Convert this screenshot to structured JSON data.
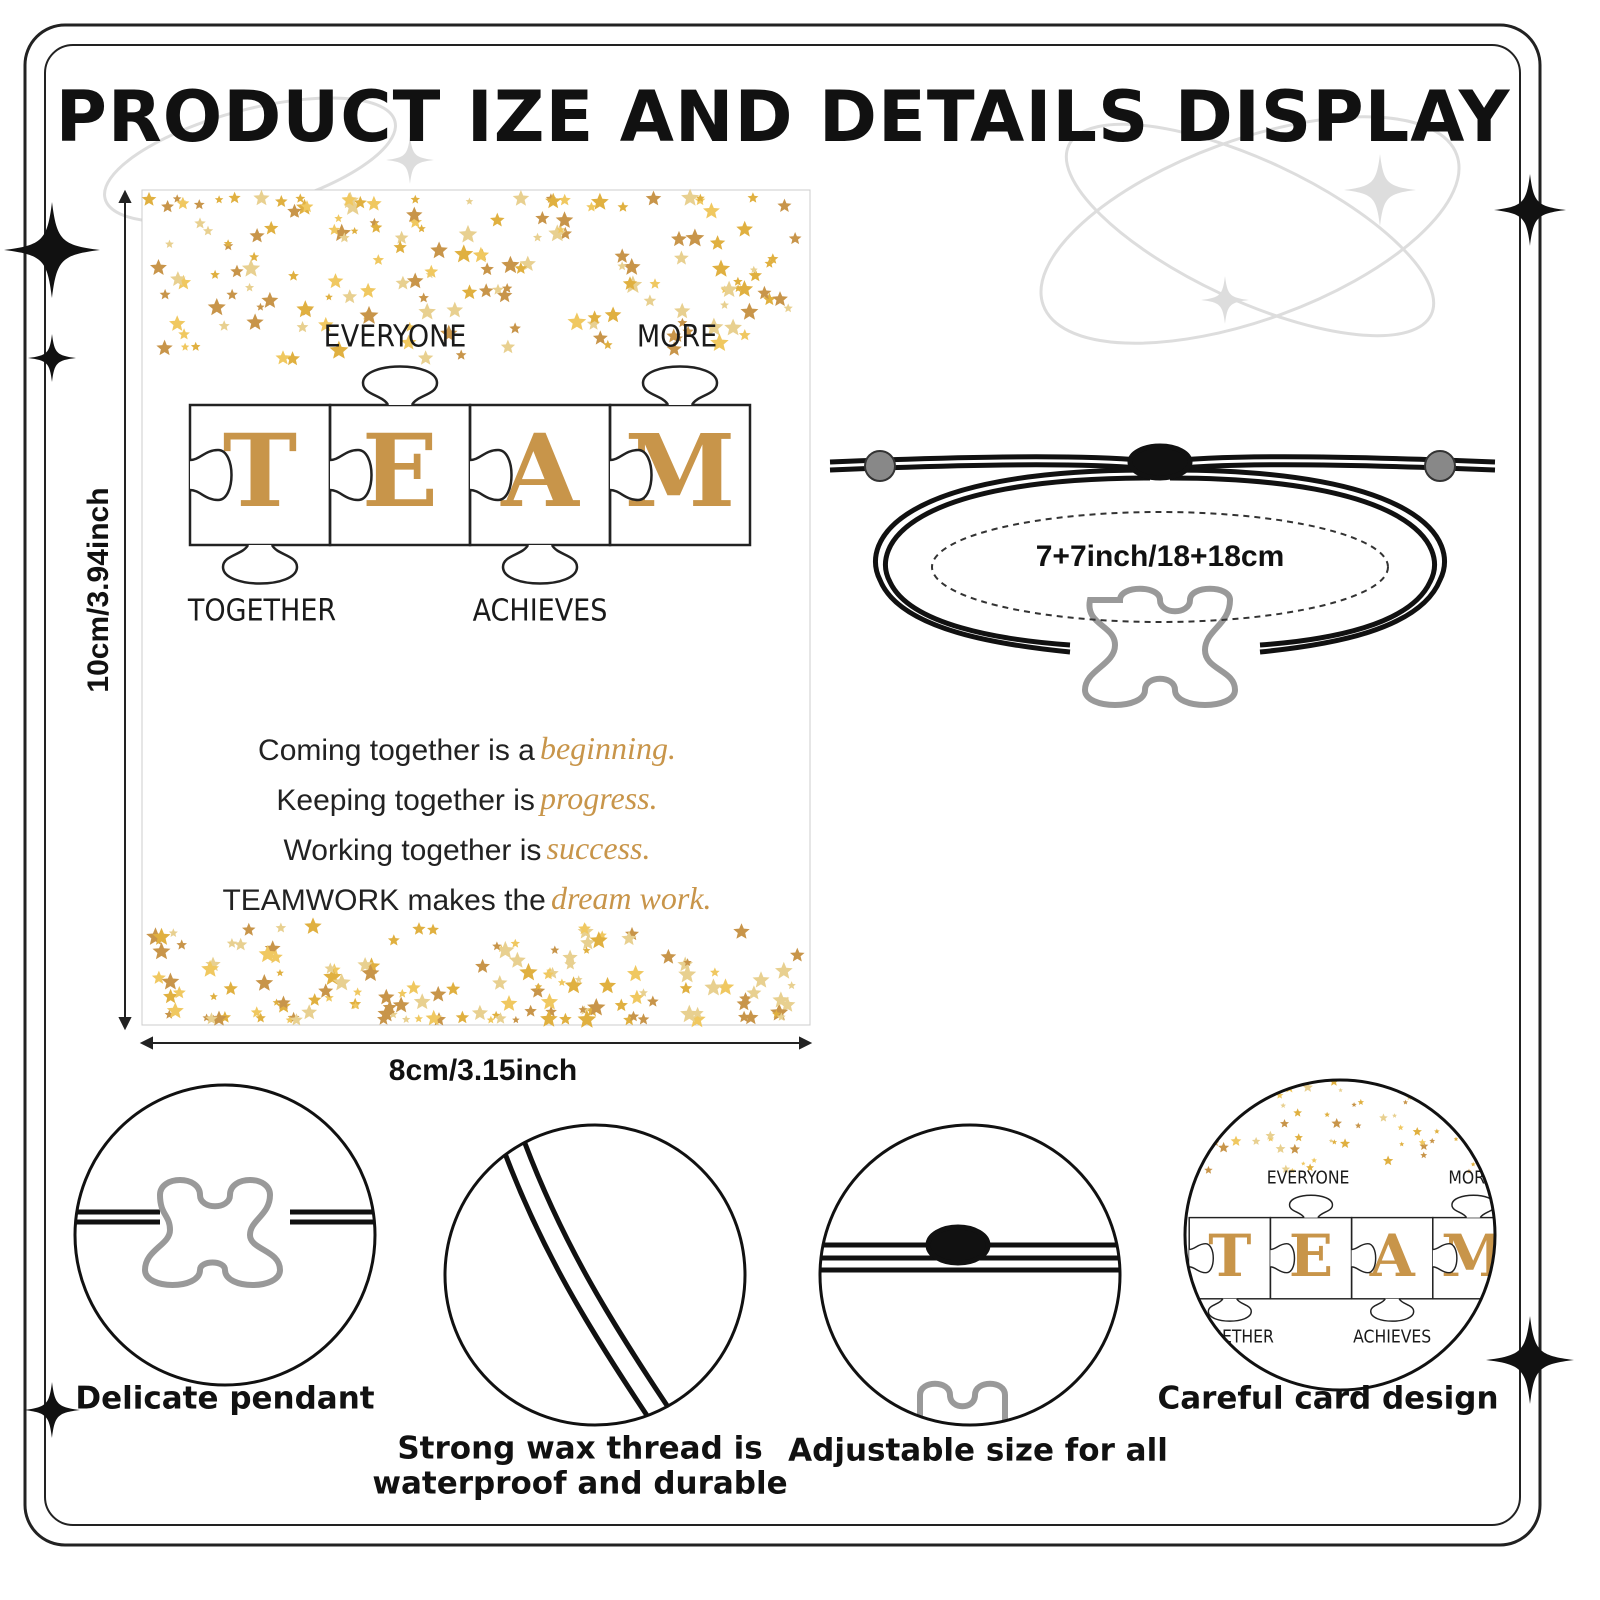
{
  "title": "PRODUCT IZE AND DETAILS DISPLAY",
  "card": {
    "top_labels": [
      "EVERYONE",
      "MORE"
    ],
    "letters": [
      "T",
      "E",
      "A",
      "M"
    ],
    "bottom_labels": [
      "TOGETHER",
      "ACHIEVES"
    ],
    "lines": [
      {
        "text": "Coming together is a",
        "accent": "beginning."
      },
      {
        "text": "Keeping together is",
        "accent": "progress."
      },
      {
        "text": "Working together is",
        "accent": "success."
      },
      {
        "text": "TEAMWORK makes the",
        "accent": "dream work."
      }
    ]
  },
  "dimensions": {
    "height": "10cm/3.94inch",
    "width": "8cm/3.15inch",
    "bracelet": "7+7inch/18+18cm"
  },
  "features": [
    {
      "caption": [
        "Delicate pendant"
      ]
    },
    {
      "caption": [
        "Strong wax thread is",
        "waterproof and durable"
      ]
    },
    {
      "caption": [
        "Adjustable size for all"
      ]
    },
    {
      "caption": [
        "Careful card design"
      ]
    }
  ]
}
